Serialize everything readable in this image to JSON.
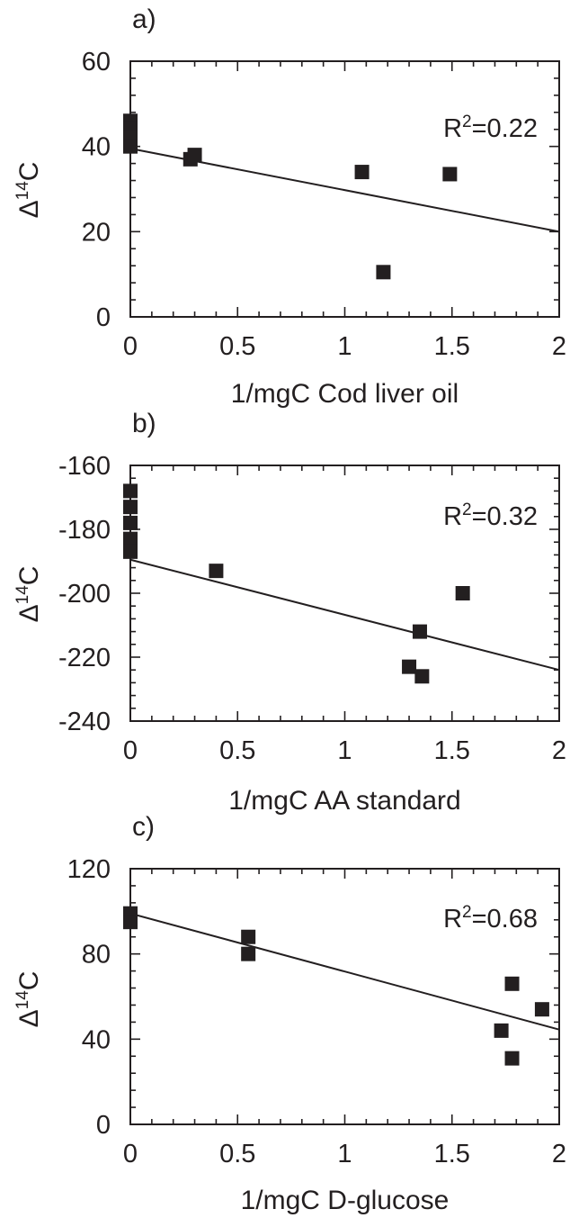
{
  "chart_data": [
    {
      "type": "scatter",
      "panel_label": "a)",
      "xlabel": "1/mgC Cod liver oil",
      "ylabel": {
        "main": "Δ",
        "sup": "14",
        "tail": "C"
      },
      "annotation": {
        "prefix": "R",
        "sup": "2",
        "suffix": "=0.22"
      },
      "xlim": [
        0,
        2
      ],
      "ylim": [
        0,
        60
      ],
      "x_ticks": [
        0,
        0.5,
        1,
        1.5,
        2
      ],
      "x_tick_labels": [
        "0",
        "0.5",
        "1",
        "1.5",
        "2"
      ],
      "y_ticks": [
        0,
        20,
        40,
        60
      ],
      "y_tick_labels": [
        "0",
        "20",
        "40",
        "60"
      ],
      "points": [
        {
          "x": 0,
          "y": 46
        },
        {
          "x": 0,
          "y": 44
        },
        {
          "x": 0,
          "y": 42
        },
        {
          "x": 0,
          "y": 40
        },
        {
          "x": 0.28,
          "y": 37
        },
        {
          "x": 0.3,
          "y": 38
        },
        {
          "x": 1.08,
          "y": 34
        },
        {
          "x": 1.18,
          "y": 10.5
        },
        {
          "x": 1.49,
          "y": 33.5
        }
      ],
      "trendline": {
        "x": [
          0,
          2
        ],
        "y": [
          39.5,
          20
        ]
      },
      "grid": false,
      "legend": "none"
    },
    {
      "type": "scatter",
      "panel_label": "b)",
      "xlabel": "1/mgC AA standard",
      "ylabel": {
        "main": "Δ",
        "sup": "14",
        "tail": "C"
      },
      "annotation": {
        "prefix": "R",
        "sup": "2",
        "suffix": "=0.32"
      },
      "xlim": [
        0,
        2
      ],
      "ylim": [
        -240,
        -160
      ],
      "x_ticks": [
        0,
        0.5,
        1,
        1.5,
        2
      ],
      "x_tick_labels": [
        "0",
        "0.5",
        "1",
        "1.5",
        "2"
      ],
      "y_ticks": [
        -240,
        -220,
        -200,
        -180,
        -160
      ],
      "y_tick_labels": [
        "-240",
        "-220",
        "-200",
        "-180",
        "-160"
      ],
      "points": [
        {
          "x": 0,
          "y": -168
        },
        {
          "x": 0,
          "y": -173
        },
        {
          "x": 0,
          "y": -178
        },
        {
          "x": 0,
          "y": -183
        },
        {
          "x": 0,
          "y": -187
        },
        {
          "x": 0.4,
          "y": -193
        },
        {
          "x": 1.3,
          "y": -223
        },
        {
          "x": 1.35,
          "y": -212
        },
        {
          "x": 1.36,
          "y": -226
        },
        {
          "x": 1.55,
          "y": -200
        }
      ],
      "trendline": {
        "x": [
          0,
          2
        ],
        "y": [
          -189.5,
          -224
        ]
      },
      "grid": false,
      "legend": "none"
    },
    {
      "type": "scatter",
      "panel_label": "c)",
      "xlabel": "1/mgC D-glucose",
      "ylabel": {
        "main": "Δ",
        "sup": "14",
        "tail": "C"
      },
      "annotation": {
        "prefix": "R",
        "sup": "2",
        "suffix": "=0.68"
      },
      "xlim": [
        0,
        2
      ],
      "ylim": [
        0,
        120
      ],
      "x_ticks": [
        0,
        0.5,
        1,
        1.5,
        2
      ],
      "x_tick_labels": [
        "0",
        "0.5",
        "1",
        "1.5",
        "2"
      ],
      "y_ticks": [
        0,
        40,
        80,
        120
      ],
      "y_tick_labels": [
        "0",
        "40",
        "80",
        "120"
      ],
      "points": [
        {
          "x": 0,
          "y": 99
        },
        {
          "x": 0,
          "y": 95
        },
        {
          "x": 0.55,
          "y": 88
        },
        {
          "x": 0.55,
          "y": 80
        },
        {
          "x": 1.73,
          "y": 44
        },
        {
          "x": 1.78,
          "y": 66
        },
        {
          "x": 1.78,
          "y": 31
        },
        {
          "x": 1.92,
          "y": 54
        }
      ],
      "trendline": {
        "x": [
          0,
          2
        ],
        "y": [
          99,
          44.5
        ]
      },
      "grid": false,
      "legend": "none"
    }
  ]
}
